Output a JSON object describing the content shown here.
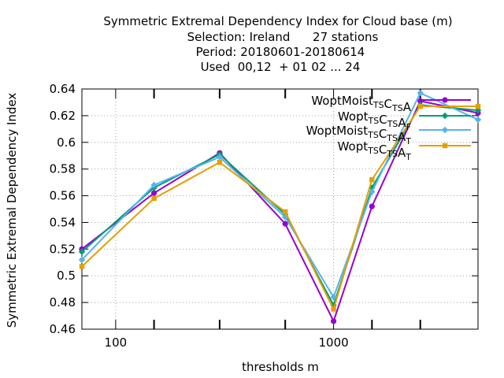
{
  "chart_data": {
    "type": "line",
    "title_lines": [
      "Symmetric Extremal Dependency Index  for Cloud base (m)",
      "Selection: Ireland      27 stations",
      "Period: 20180601-20180614",
      "Used  00,12  + 01 02 ... 24"
    ],
    "xlabel": "thresholds m",
    "ylabel": "Symmetric Extremal Dependency Index",
    "x_scale": "log",
    "xlim": [
      70,
      4600
    ],
    "ylim": [
      0.46,
      0.64
    ],
    "x_ticks": [
      100,
      1000
    ],
    "x_tick_labels": [
      "100",
      "1000"
    ],
    "x_minor_ticks": [
      150,
      300,
      600,
      1500,
      2500
    ],
    "y_ticks": [
      0.46,
      0.48,
      0.5,
      0.52,
      0.54,
      0.56,
      0.58,
      0.6,
      0.62,
      0.64
    ],
    "y_tick_labels": [
      "0.46",
      "0.48",
      "0.5",
      "0.52",
      "0.54",
      "0.56",
      "0.58",
      "0.6",
      "0.62",
      "0.64"
    ],
    "grid": true,
    "legend_position": "top-right",
    "x": [
      70,
      150,
      300,
      600,
      1000,
      1500,
      2500,
      4600
    ],
    "series": [
      {
        "name": "WoptMoist",
        "sub1": "TS",
        "mid": "C",
        "sub2": "TS",
        "tail": "A",
        "sub3": "",
        "color": "#9400d3",
        "marker": "circle",
        "values": [
          0.52,
          0.562,
          0.592,
          0.539,
          0.466,
          0.552,
          0.631,
          0.622
        ]
      },
      {
        "name": "Wopt",
        "sub1": "TS",
        "mid": "C",
        "sub2": "TS",
        "tail": "A",
        "sub3": "F",
        "color": "#009e73",
        "marker": "diamond",
        "values": [
          0.518,
          0.566,
          0.591,
          0.546,
          0.478,
          0.566,
          0.628,
          0.624
        ]
      },
      {
        "name": "WoptMoist",
        "sub1": "TS",
        "mid": "C",
        "sub2": "TS",
        "tail": "A",
        "sub3": "T",
        "color": "#56b4e9",
        "marker": "diamond",
        "values": [
          0.512,
          0.568,
          0.589,
          0.544,
          0.484,
          0.563,
          0.637,
          0.617
        ]
      },
      {
        "name": "Wopt",
        "sub1": "TS",
        "mid": "C",
        "sub2": "TS",
        "tail": "A",
        "sub3": "T",
        "color": "#e69f00",
        "marker": "square",
        "values": [
          0.507,
          0.558,
          0.585,
          0.548,
          0.475,
          0.572,
          0.627,
          0.627
        ]
      }
    ]
  }
}
